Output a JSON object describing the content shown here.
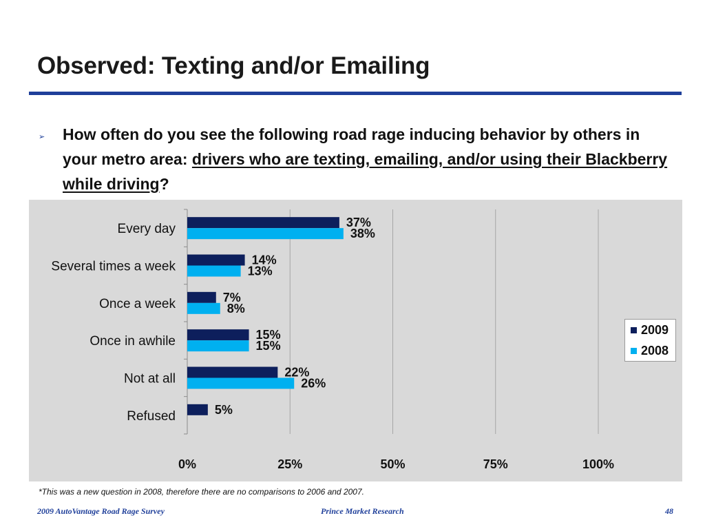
{
  "slide": {
    "title": "Observed: Texting and/or Emailing",
    "bullet_glyph": "➢",
    "question_part1": "How often do you see the following road rage inducing behavior by others in your metro area: ",
    "question_underlined": "drivers who are texting, emailing, and/or using their Blackberry while driving",
    "question_end": "?",
    "footnote": "*This was a new question in 2008, therefore there are no comparisons to 2006 and 2007.",
    "footer_left": "2009 AutoVantage Road Rage Survey",
    "footer_center": "Prince Market Research",
    "page_number": "48"
  },
  "colors": {
    "title_rule": "#1f3f9a",
    "series_2009": "#0d1f5c",
    "series_2008": "#00b0f0",
    "chart_bg": "#d9d9d9"
  },
  "chart_data": {
    "type": "bar",
    "orientation": "horizontal",
    "categories": [
      "Every day",
      "Several times a week",
      "Once a week",
      "Once in awhile",
      "Not at all",
      "Refused"
    ],
    "series": [
      {
        "name": "2009",
        "values": [
          37,
          14,
          7,
          15,
          22,
          5
        ],
        "labels": [
          "37%",
          "14%",
          "7%",
          "15%",
          "22%",
          "5%"
        ]
      },
      {
        "name": "2008",
        "values": [
          38,
          13,
          8,
          15,
          26,
          null
        ],
        "labels": [
          "38%",
          "13%",
          "8%",
          "15%",
          "26%",
          ""
        ]
      }
    ],
    "xlim": [
      0,
      100
    ],
    "xticks": [
      0,
      25,
      50,
      75,
      100
    ],
    "xtick_labels": [
      "0%",
      "25%",
      "50%",
      "75%",
      "100%"
    ],
    "grid": "vertical",
    "legend_position": "right"
  }
}
